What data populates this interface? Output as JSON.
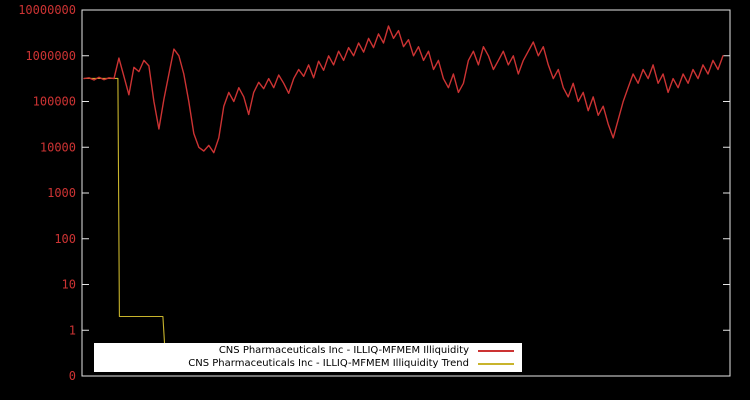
{
  "colors": {
    "background": "#000000",
    "frame": "#e6e6e6",
    "tick_label": "#cc3333",
    "legend_bg": "#ffffff",
    "legend_text": "#000000"
  },
  "chart_data": {
    "type": "line",
    "title": "",
    "xlabel": "",
    "ylabel": "",
    "yscale": "log",
    "ylog_range": [
      -1,
      7
    ],
    "grid": false,
    "legend_position": "bottom-center-inside",
    "y_ticks": [
      {
        "label": "10000000",
        "log": 7
      },
      {
        "label": "1000000",
        "log": 6
      },
      {
        "label": "100000",
        "log": 5
      },
      {
        "label": "10000",
        "log": 4
      },
      {
        "label": "1000",
        "log": 3
      },
      {
        "label": "100",
        "log": 2
      },
      {
        "label": "10",
        "log": 1
      },
      {
        "label": "1",
        "log": 0
      },
      {
        "label": "0",
        "log": -1
      }
    ],
    "x_tick_labels": [],
    "series": [
      {
        "id": "illiquidity",
        "name": "CNS Pharmaceuticals Inc - ILLIQ-MFMEM Illiquidity",
        "color": "#cc3333",
        "width": 1.4,
        "values": [
          316000,
          330000,
          295000,
          340000,
          300000,
          330000,
          316000,
          890000,
          355000,
          140000,
          560000,
          450000,
          790000,
          600000,
          100000,
          25000,
          112000,
          400000,
          1400000,
          1000000,
          400000,
          100000,
          20000,
          10000,
          8300,
          11000,
          7600,
          16000,
          79000,
          158000,
          100000,
          200000,
          126000,
          52000,
          158000,
          263000,
          190000,
          316000,
          200000,
          380000,
          250000,
          151000,
          316000,
          500000,
          355000,
          630000,
          330000,
          760000,
          480000,
          1000000,
          630000,
          1260000,
          790000,
          1510000,
          1000000,
          1900000,
          1200000,
          2400000,
          1510000,
          3000000,
          1900000,
          4470000,
          2400000,
          3550000,
          1580000,
          2240000,
          1000000,
          1580000,
          790000,
          1260000,
          500000,
          790000,
          316000,
          200000,
          400000,
          158000,
          250000,
          790000,
          1260000,
          630000,
          1580000,
          1000000,
          500000,
          790000,
          1260000,
          630000,
          1000000,
          400000,
          790000,
          1260000,
          2000000,
          1000000,
          1580000,
          630000,
          316000,
          500000,
          200000,
          126000,
          250000,
          100000,
          158000,
          63000,
          126000,
          50000,
          79000,
          32000,
          16000,
          40000,
          100000,
          200000,
          400000,
          250000,
          500000,
          316000,
          630000,
          250000,
          400000,
          158000,
          316000,
          200000,
          400000,
          250000,
          500000,
          316000,
          630000,
          400000,
          790000,
          500000,
          1000000
        ]
      },
      {
        "id": "trend",
        "name": "CNS Pharmaceuticals Inc - ILLIQ-MFMEM Illiquidity Trend",
        "color": "#c8b42c",
        "width": 1.1,
        "x": [
          0,
          6.8,
          7.1,
          15.8,
          16.3,
          16.7
        ],
        "values": [
          320000,
          320000,
          2,
          2,
          0.25,
          0.18
        ]
      }
    ]
  }
}
